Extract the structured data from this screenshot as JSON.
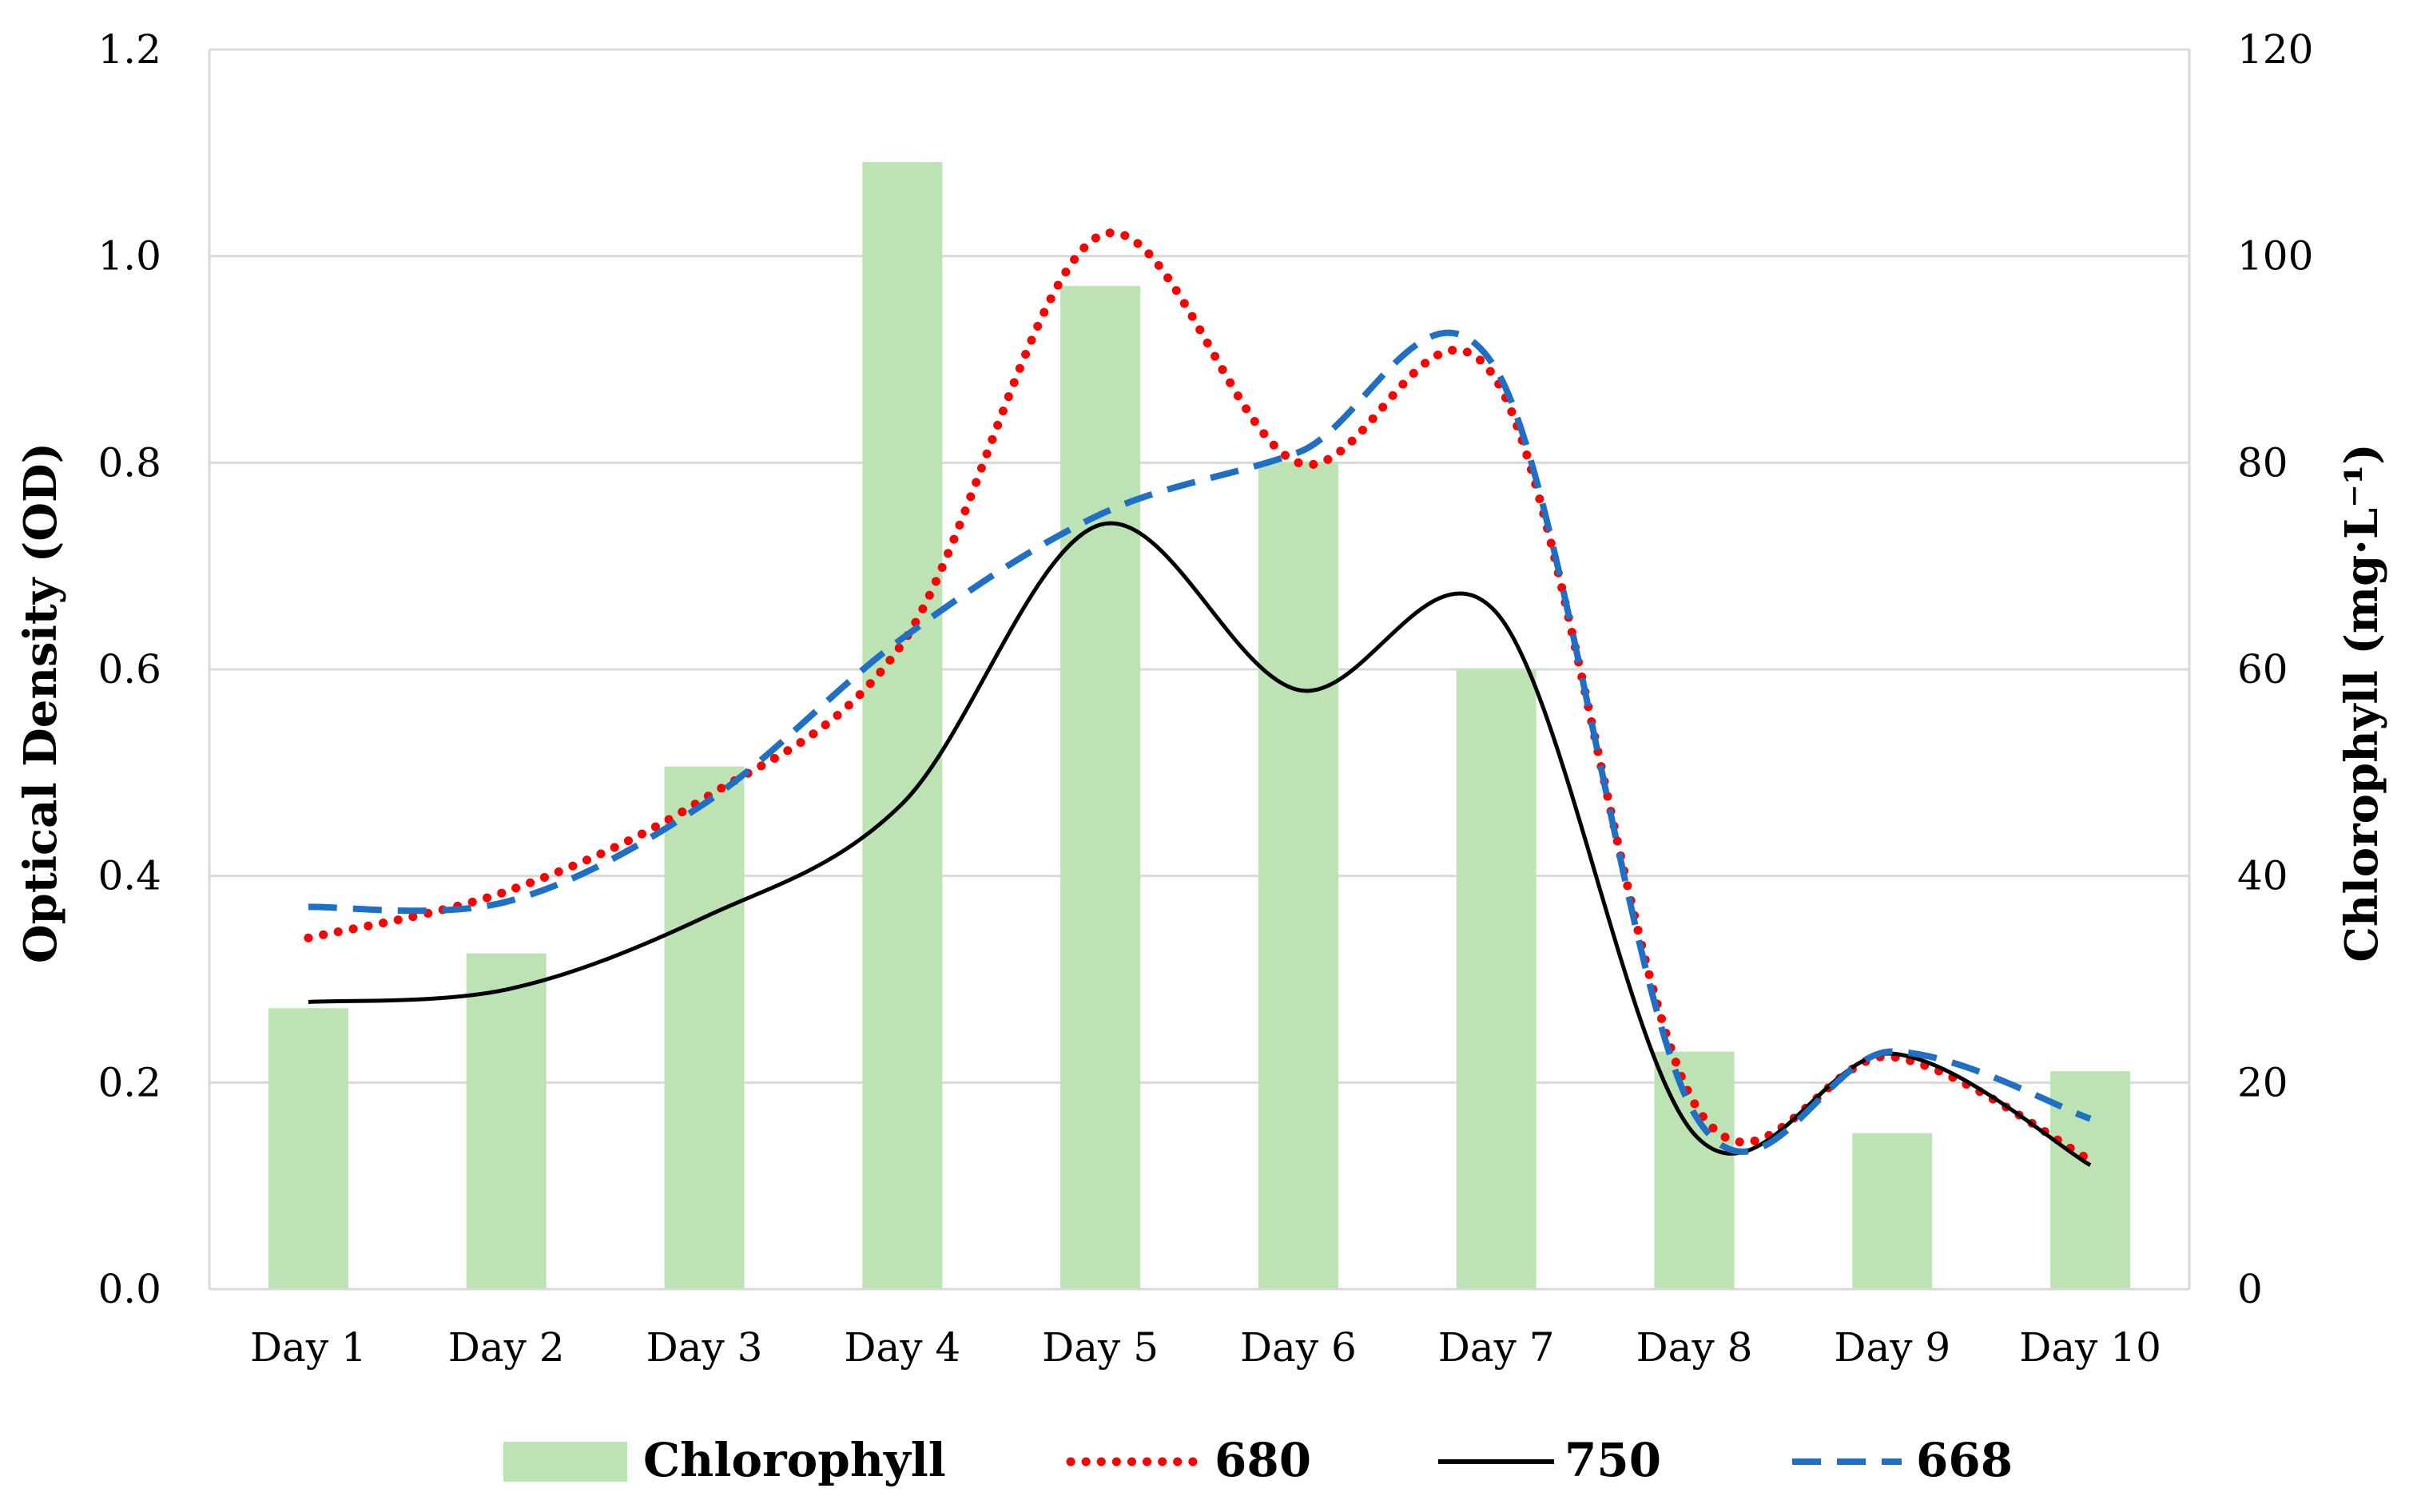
{
  "chart_data": {
    "type": "bar+line",
    "categories": [
      "Day 1",
      "Day 2",
      "Day 3",
      "Day 4",
      "Day 5",
      "Day 6",
      "Day 7",
      "Day 8",
      "Day 9",
      "Day 10"
    ],
    "y_left": {
      "label": "Optical Density (OD)",
      "min": 0,
      "max": 1.2,
      "step": 0.2,
      "ticks": [
        "0.0",
        "0.2",
        "0.4",
        "0.6",
        "0.8",
        "1.0",
        "1.2"
      ]
    },
    "y_right": {
      "label": "Chlorophyll (mg·L⁻¹)",
      "min": 0,
      "max": 120,
      "step": 20,
      "ticks": [
        "0",
        "20",
        "40",
        "60",
        "80",
        "100",
        "120"
      ]
    },
    "grid": true,
    "legend_position": "bottom",
    "series": [
      {
        "name": "Chlorophyll",
        "type": "bar",
        "axis": "right",
        "color": "#bde3b4",
        "values": [
          27.2,
          32.5,
          50.6,
          109.1,
          97.1,
          80.1,
          60.0,
          23.0,
          15.1,
          21.1
        ]
      },
      {
        "name": "680",
        "type": "line",
        "axis": "left",
        "style": "dotted",
        "color": "#ff0000",
        "values": [
          0.34,
          0.385,
          0.475,
          0.625,
          1.02,
          0.8,
          0.88,
          0.18,
          0.225,
          0.125
        ]
      },
      {
        "name": "750",
        "type": "line",
        "axis": "left",
        "style": "solid",
        "color": "#000000",
        "values": [
          0.278,
          0.29,
          0.36,
          0.47,
          0.74,
          0.58,
          0.655,
          0.15,
          0.228,
          0.12
        ]
      },
      {
        "name": "668",
        "type": "line",
        "axis": "left",
        "style": "dashed",
        "color": "#1f6fc4",
        "values": [
          0.37,
          0.375,
          0.47,
          0.63,
          0.75,
          0.81,
          0.89,
          0.17,
          0.23,
          0.165
        ]
      }
    ]
  }
}
